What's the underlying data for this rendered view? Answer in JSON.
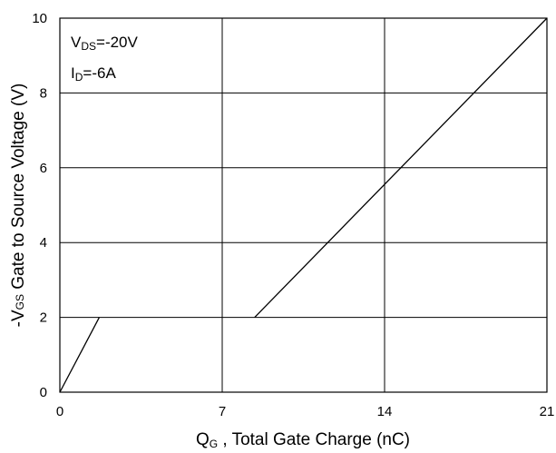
{
  "chart_data": {
    "type": "line",
    "title": "",
    "xlabel_main": "Q",
    "xlabel_sub": "G",
    "xlabel_rest": " , Total Gate Charge (nC)",
    "ylabel_pre": "-V",
    "ylabel_sub": "GS",
    "ylabel_rest": " Gate to Source Voltage (V)",
    "xlim": [
      0,
      21
    ],
    "ylim": [
      0,
      10
    ],
    "x_ticks": [
      0,
      7,
      14,
      21
    ],
    "y_ticks": [
      0,
      2,
      4,
      6,
      8,
      10
    ],
    "grid": true,
    "annotations": [
      {
        "main": "V",
        "sub": "DS",
        "rest": "=-20V"
      },
      {
        "main": "I",
        "sub": "D",
        "rest": "=-6A"
      }
    ],
    "series": [
      {
        "x": [
          0,
          1.7
        ],
        "y": [
          0,
          2
        ]
      },
      {
        "x": [
          8.4,
          21
        ],
        "y": [
          2,
          10
        ]
      }
    ]
  }
}
